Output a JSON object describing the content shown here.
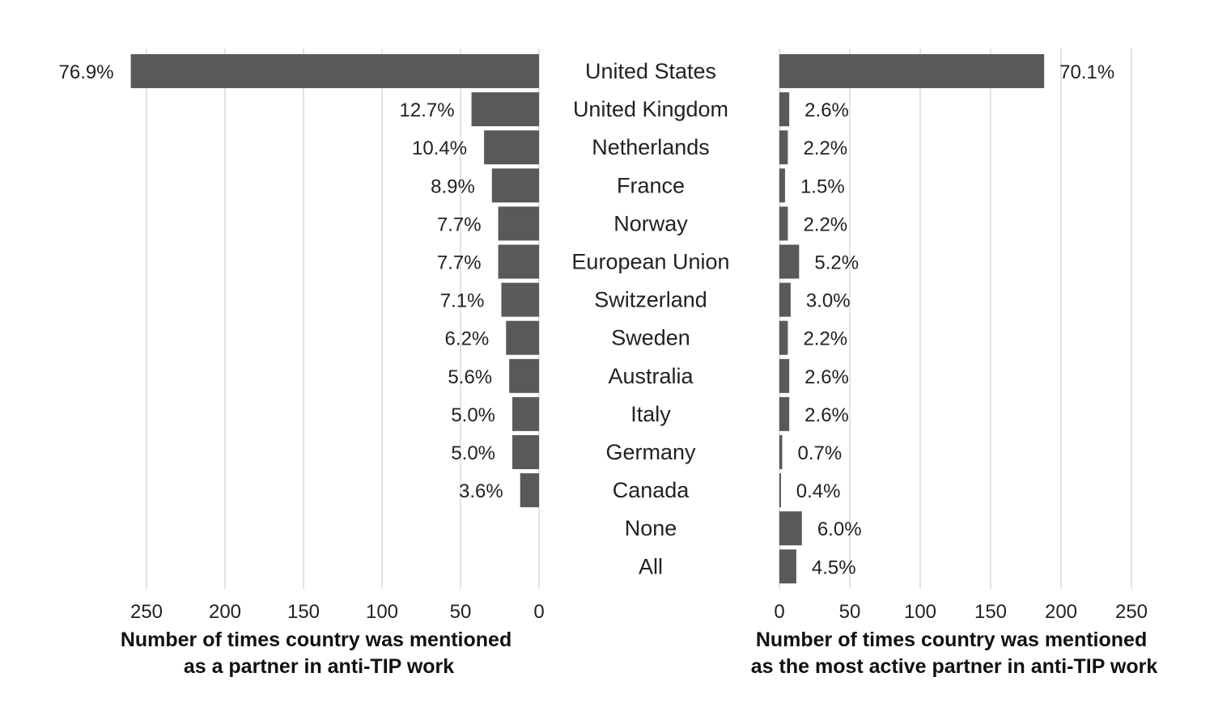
{
  "chart_data": {
    "type": "bar",
    "orientation": "horizontal-butterfly",
    "categories": [
      "United States",
      "United Kingdom",
      "Netherlands",
      "France",
      "Norway",
      "European Union",
      "Switzerland",
      "Sweden",
      "Australia",
      "Italy",
      "Germany",
      "Canada",
      "None",
      "All"
    ],
    "bar_color": "#595959",
    "grid": true,
    "series": [
      {
        "side": "left",
        "values": [
          260,
          43,
          35,
          30,
          26,
          26,
          24,
          21,
          19,
          17,
          17,
          12,
          null,
          null
        ],
        "labels": [
          "76.9%",
          "12.7%",
          "10.4%",
          "8.9%",
          "7.7%",
          "7.7%",
          "7.1%",
          "6.2%",
          "5.6%",
          "5.0%",
          "5.0%",
          "3.6%",
          "",
          ""
        ],
        "xlim": [
          0,
          260
        ],
        "ticks": [
          250,
          200,
          150,
          100,
          50,
          0
        ],
        "xlabel_lines": [
          "Number of times country was mentioned",
          "as a partner in anti-TIP work"
        ]
      },
      {
        "side": "right",
        "values": [
          188,
          7,
          6,
          4,
          6,
          14,
          8,
          6,
          7,
          7,
          2,
          1,
          16,
          12
        ],
        "labels": [
          "70.1%",
          "2.6%",
          "2.2%",
          "1.5%",
          "2.2%",
          "5.2%",
          "3.0%",
          "2.2%",
          "2.6%",
          "2.6%",
          "0.7%",
          "0.4%",
          "6.0%",
          "4.5%"
        ],
        "xlim": [
          0,
          260
        ],
        "ticks": [
          0,
          50,
          100,
          150,
          200,
          250
        ],
        "xlabel_lines": [
          "Number of times country was mentioned",
          "as the most active partner in anti-TIP work"
        ]
      }
    ]
  }
}
